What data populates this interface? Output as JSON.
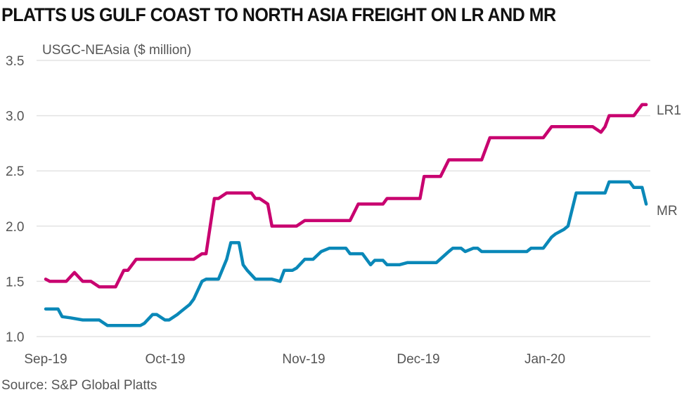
{
  "title": "PLATTS US GULF COAST TO NORTH ASIA FREIGHT ON LR AND MR",
  "source": "Source: S&P Global Platts",
  "chart_data": {
    "type": "line",
    "title": "PLATTS US GULF COAST TO NORTH ASIA FREIGHT ON LR AND MR",
    "ylabel": "USGC-NEAsia ($ million)",
    "xlabel": "",
    "ylim": [
      1.0,
      3.5
    ],
    "yticks": [
      "1.0",
      "1.5",
      "2.0",
      "2.5",
      "3.0",
      "3.5"
    ],
    "xticks": [
      "Sep-19",
      "Oct-19",
      "Nov-19",
      "Dec-19",
      "Jan-20"
    ],
    "grid": "horizontal",
    "legend": "inline labels at line ends",
    "series": [
      {
        "name": "LR1",
        "color": "#c8006f",
        "points": [
          [
            "2019-09-02",
            1.52
          ],
          [
            "2019-09-03",
            1.5
          ],
          [
            "2019-09-07",
            1.5
          ],
          [
            "2019-09-09",
            1.58
          ],
          [
            "2019-09-11",
            1.5
          ],
          [
            "2019-09-13",
            1.5
          ],
          [
            "2019-09-15",
            1.45
          ],
          [
            "2019-09-19",
            1.45
          ],
          [
            "2019-09-21",
            1.6
          ],
          [
            "2019-09-22",
            1.6
          ],
          [
            "2019-09-24",
            1.7
          ],
          [
            "2019-10-08",
            1.7
          ],
          [
            "2019-10-10",
            1.75
          ],
          [
            "2019-10-11",
            1.75
          ],
          [
            "2019-10-13",
            2.25
          ],
          [
            "2019-10-14",
            2.25
          ],
          [
            "2019-10-16",
            2.3
          ],
          [
            "2019-10-22",
            2.3
          ],
          [
            "2019-10-23",
            2.25
          ],
          [
            "2019-10-24",
            2.25
          ],
          [
            "2019-10-26",
            2.2
          ],
          [
            "2019-10-27",
            2.0
          ],
          [
            "2019-11-02",
            2.0
          ],
          [
            "2019-11-04",
            2.05
          ],
          [
            "2019-11-15",
            2.05
          ],
          [
            "2019-11-17",
            2.2
          ],
          [
            "2019-11-23",
            2.2
          ],
          [
            "2019-11-24",
            2.25
          ],
          [
            "2019-12-02",
            2.25
          ],
          [
            "2019-12-03",
            2.45
          ],
          [
            "2019-12-07",
            2.45
          ],
          [
            "2019-12-09",
            2.6
          ],
          [
            "2019-12-17",
            2.6
          ],
          [
            "2019-12-19",
            2.8
          ],
          [
            "2020-01-01",
            2.8
          ],
          [
            "2020-01-03",
            2.9
          ],
          [
            "2020-01-13",
            2.9
          ],
          [
            "2020-01-15",
            2.85
          ],
          [
            "2020-01-16",
            2.9
          ],
          [
            "2020-01-17",
            3.0
          ],
          [
            "2020-01-23",
            3.0
          ],
          [
            "2020-01-25",
            3.1
          ],
          [
            "2020-01-26",
            3.1
          ]
        ]
      },
      {
        "name": "MR",
        "color": "#0a88b8",
        "points": [
          [
            "2019-09-02",
            1.25
          ],
          [
            "2019-09-05",
            1.25
          ],
          [
            "2019-09-06",
            1.18
          ],
          [
            "2019-09-08",
            1.17
          ],
          [
            "2019-09-11",
            1.15
          ],
          [
            "2019-09-15",
            1.15
          ],
          [
            "2019-09-17",
            1.1
          ],
          [
            "2019-09-25",
            1.1
          ],
          [
            "2019-09-26",
            1.12
          ],
          [
            "2019-09-28",
            1.2
          ],
          [
            "2019-09-29",
            1.2
          ],
          [
            "2019-10-01",
            1.15
          ],
          [
            "2019-10-02",
            1.15
          ],
          [
            "2019-10-04",
            1.2
          ],
          [
            "2019-10-05",
            1.23
          ],
          [
            "2019-10-07",
            1.29
          ],
          [
            "2019-10-08",
            1.34
          ],
          [
            "2019-10-10",
            1.5
          ],
          [
            "2019-10-11",
            1.52
          ],
          [
            "2019-10-14",
            1.52
          ],
          [
            "2019-10-16",
            1.7
          ],
          [
            "2019-10-17",
            1.85
          ],
          [
            "2019-10-19",
            1.85
          ],
          [
            "2019-10-20",
            1.65
          ],
          [
            "2019-10-21",
            1.6
          ],
          [
            "2019-10-23",
            1.52
          ],
          [
            "2019-10-27",
            1.52
          ],
          [
            "2019-10-29",
            1.5
          ],
          [
            "2019-10-30",
            1.6
          ],
          [
            "2019-11-01",
            1.6
          ],
          [
            "2019-11-02",
            1.62
          ],
          [
            "2019-11-04",
            1.7
          ],
          [
            "2019-11-06",
            1.7
          ],
          [
            "2019-11-08",
            1.77
          ],
          [
            "2019-11-10",
            1.8
          ],
          [
            "2019-11-14",
            1.8
          ],
          [
            "2019-11-15",
            1.75
          ],
          [
            "2019-11-18",
            1.75
          ],
          [
            "2019-11-20",
            1.65
          ],
          [
            "2019-11-21",
            1.69
          ],
          [
            "2019-11-23",
            1.69
          ],
          [
            "2019-11-24",
            1.65
          ],
          [
            "2019-11-27",
            1.65
          ],
          [
            "2019-11-29",
            1.67
          ],
          [
            "2019-12-06",
            1.67
          ],
          [
            "2019-12-09",
            1.77
          ],
          [
            "2019-12-10",
            1.8
          ],
          [
            "2019-12-12",
            1.8
          ],
          [
            "2019-12-13",
            1.77
          ],
          [
            "2019-12-15",
            1.8
          ],
          [
            "2019-12-16",
            1.8
          ],
          [
            "2019-12-17",
            1.77
          ],
          [
            "2019-12-28",
            1.77
          ],
          [
            "2019-12-29",
            1.8
          ],
          [
            "2020-01-01",
            1.8
          ],
          [
            "2020-01-03",
            1.9
          ],
          [
            "2020-01-04",
            1.93
          ],
          [
            "2020-01-06",
            1.97
          ],
          [
            "2020-01-07",
            2.0
          ],
          [
            "2020-01-09",
            2.3
          ],
          [
            "2020-01-16",
            2.3
          ],
          [
            "2020-01-17",
            2.4
          ],
          [
            "2020-01-22",
            2.4
          ],
          [
            "2020-01-23",
            2.35
          ],
          [
            "2020-01-25",
            2.35
          ],
          [
            "2020-01-26",
            2.2
          ]
        ]
      }
    ]
  }
}
